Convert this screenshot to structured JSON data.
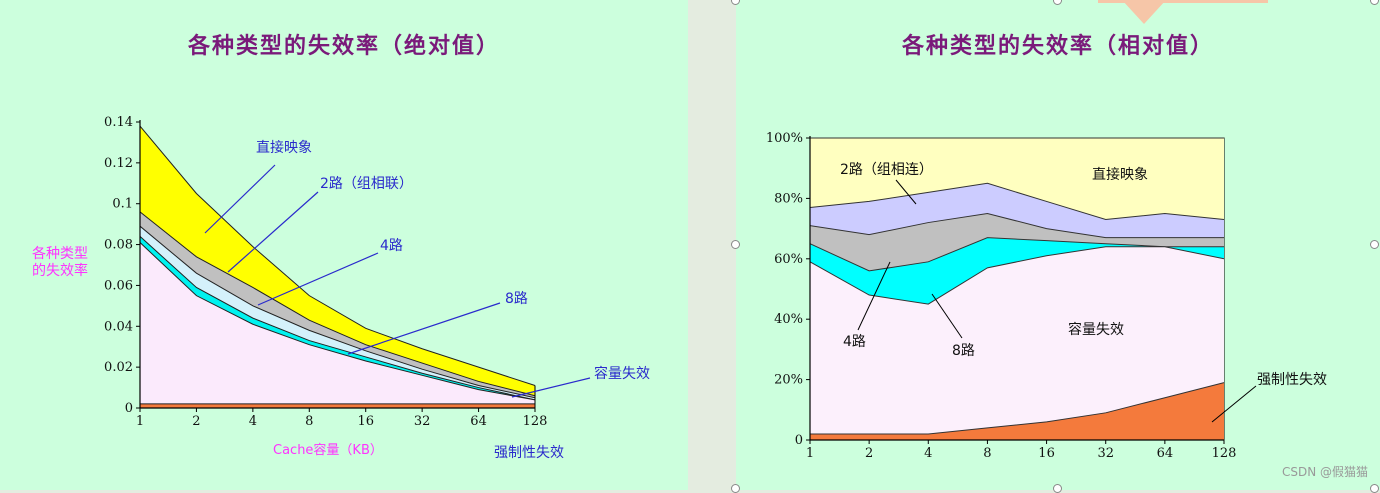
{
  "left_title": "各种类型的失效率（绝对值）",
  "right_title": "各种类型的失效率（相对值）",
  "watermark": "CSDN @假猫猫",
  "chart_data": [
    {
      "type": "area",
      "title": "各种类型的失效率（绝对值）",
      "xlabel": "Cache容量（KB）",
      "ylabel": "各种类型\n的失效率",
      "categories": [
        "1",
        "2",
        "4",
        "8",
        "16",
        "32",
        "64",
        "128"
      ],
      "y_ticks": [
        "0",
        "0.02",
        "0.04",
        "0.06",
        "0.08",
        "0.1",
        "0.12",
        "0.14"
      ],
      "ylim": [
        0,
        0.14
      ],
      "grid": false,
      "series": [
        {
          "name": "强制性失效",
          "values": [
            0.002,
            0.002,
            0.002,
            0.002,
            0.002,
            0.002,
            0.002,
            0.002
          ],
          "color": "#f47a3c"
        },
        {
          "name": "容量失效",
          "values": [
            0.081,
            0.055,
            0.041,
            0.031,
            0.023,
            0.016,
            0.009,
            0.004
          ],
          "color": "#fbeafc"
        },
        {
          "name": "8路",
          "values": [
            0.084,
            0.059,
            0.044,
            0.033,
            0.025,
            0.017,
            0.01,
            0.004
          ],
          "color": "#00f2ef"
        },
        {
          "name": "4路",
          "values": [
            0.089,
            0.066,
            0.05,
            0.038,
            0.028,
            0.019,
            0.011,
            0.005
          ],
          "color": "#d4f1fb"
        },
        {
          "name": "2路（组相联）",
          "values": [
            0.096,
            0.074,
            0.059,
            0.043,
            0.031,
            0.022,
            0.013,
            0.006
          ],
          "color": "#c0c0c0"
        },
        {
          "name": "直接映象",
          "values": [
            0.138,
            0.105,
            0.079,
            0.055,
            0.039,
            0.029,
            0.02,
            0.011
          ],
          "color": "#ffff00"
        }
      ],
      "annotations": [
        "直接映象",
        "2路（组相联）",
        "4路",
        "8路",
        "容量失效",
        "强制性失效"
      ]
    },
    {
      "type": "area",
      "title": "各种类型的失效率（相对值）",
      "categories": [
        "1",
        "2",
        "4",
        "8",
        "16",
        "32",
        "64",
        "128"
      ],
      "y_ticks": [
        "0",
        "20%",
        "40%",
        "60%",
        "80%",
        "100%"
      ],
      "ylim": [
        0,
        100
      ],
      "grid": false,
      "series": [
        {
          "name": "强制性失效",
          "values": [
            2,
            2,
            2,
            4,
            6,
            9,
            14,
            19
          ],
          "color": "#f47a3c"
        },
        {
          "name": "容量失效",
          "values": [
            59,
            48,
            45,
            57,
            61,
            64,
            64,
            60
          ],
          "color": "#fcf0fc"
        },
        {
          "name": "8路",
          "values": [
            65,
            56,
            59,
            67,
            66,
            65,
            64,
            64
          ],
          "color": "#00ffff"
        },
        {
          "name": "4路",
          "values": [
            71,
            68,
            72,
            75,
            70,
            67,
            67,
            67
          ],
          "color": "#c0c0c0"
        },
        {
          "name": "2路（组相连）",
          "values": [
            77,
            79,
            82,
            85,
            79,
            73,
            75,
            73
          ],
          "color": "#ccccff"
        },
        {
          "name": "直接映象",
          "values": [
            100,
            100,
            100,
            100,
            100,
            100,
            100,
            100
          ],
          "color": "#ffffc0"
        }
      ],
      "annotations": [
        "2路（组相连）",
        "直接映象",
        "4路",
        "8路",
        "容量失效",
        "强制性失效"
      ]
    }
  ]
}
